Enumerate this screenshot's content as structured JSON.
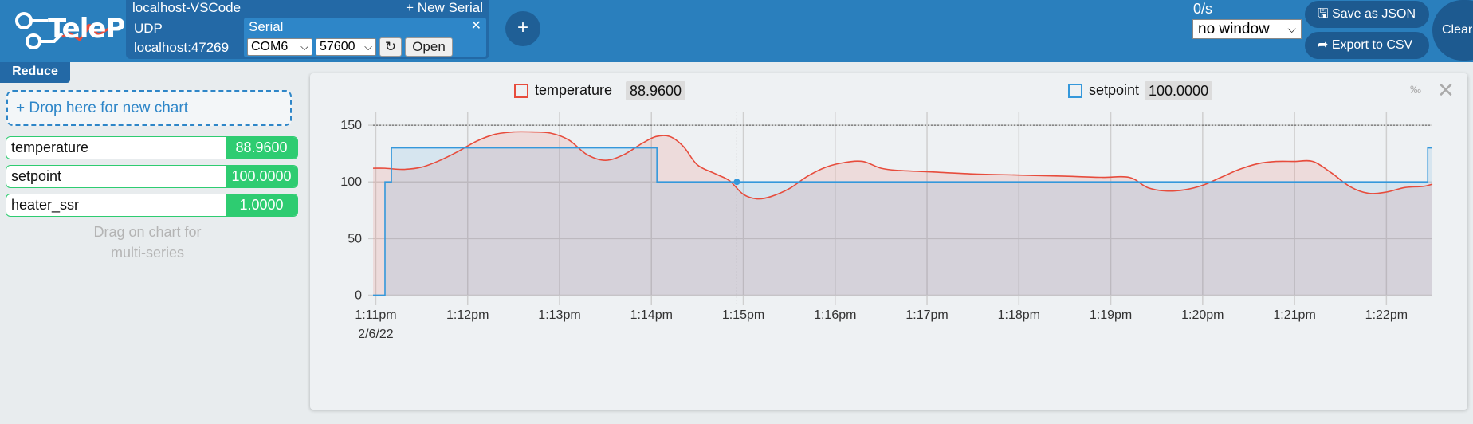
{
  "header": {
    "logo_text": "TelePlot",
    "connection_title": "localhost-VSCode",
    "new_serial_label": "+ New Serial",
    "udp": {
      "label": "UDP",
      "address": "localhost:47269"
    },
    "serial": {
      "label": "Serial",
      "close_glyph": "✕",
      "port": "COM6",
      "baud": "57600",
      "refresh_glyph": "↻",
      "open_label": "Open"
    },
    "add_glyph": "+",
    "rate": "0/s",
    "window_select": "no window",
    "save_json_label": "🖫 Save as JSON",
    "export_csv_label": "➦ Export to CSV",
    "clear_label": "Clear"
  },
  "sidebar": {
    "reduce_label": "Reduce",
    "drop_zone_label": "+ Drop here for new chart",
    "variables": [
      {
        "name": "temperature",
        "value": "88.9600"
      },
      {
        "name": "setpoint",
        "value": "100.0000"
      },
      {
        "name": "heater_ssr",
        "value": "1.0000"
      }
    ],
    "hint_line1": "Drag on chart for",
    "hint_line2": "multi-series"
  },
  "chart": {
    "permille_label": "‰",
    "close_glyph": "✕",
    "legend": [
      {
        "name": "temperature",
        "value": "88.9600",
        "color": "#e74c3c"
      },
      {
        "name": "setpoint",
        "value": "100.0000",
        "color": "#3498db"
      }
    ],
    "date_label": "2/6/22"
  },
  "chart_data": {
    "type": "line",
    "x_unit": "time",
    "x_tick_labels": [
      "1:11pm",
      "1:12pm",
      "1:13pm",
      "1:14pm",
      "1:15pm",
      "1:16pm",
      "1:17pm",
      "1:18pm",
      "1:19pm",
      "1:20pm",
      "1:21pm",
      "1:22pm"
    ],
    "x_ticks_minutes": [
      11,
      12,
      13,
      14,
      15,
      16,
      17,
      18,
      19,
      20,
      21,
      22
    ],
    "xlim_minutes": [
      10.97,
      22.5
    ],
    "y_ticks": [
      0,
      50,
      100,
      150
    ],
    "ylim": [
      -6,
      162
    ],
    "grid": true,
    "legend_position": "top",
    "cursor_x_minutes": 14.93,
    "cursor_point": {
      "x_minutes": 14.93,
      "y": 100
    },
    "series": [
      {
        "name": "temperature",
        "color": "#e74c3c",
        "x_minutes": [
          10.97,
          11.1,
          11.3,
          11.5,
          11.7,
          11.9,
          12.1,
          12.3,
          12.5,
          12.7,
          12.9,
          13.1,
          13.3,
          13.5,
          13.7,
          13.9,
          14.05,
          14.2,
          14.35,
          14.5,
          14.7,
          14.85,
          15.0,
          15.15,
          15.3,
          15.5,
          15.7,
          15.9,
          16.1,
          16.3,
          16.5,
          16.7,
          17.0,
          17.5,
          18.0,
          18.5,
          18.9,
          19.2,
          19.4,
          19.6,
          19.8,
          20.0,
          20.2,
          20.4,
          20.6,
          20.8,
          21.0,
          21.2,
          21.4,
          21.6,
          21.8,
          22.0,
          22.2,
          22.4,
          22.5
        ],
        "values": [
          112,
          112,
          111,
          113,
          119,
          127,
          136,
          142,
          144,
          144,
          143,
          137,
          124,
          119,
          124,
          134,
          140,
          140,
          131,
          115,
          107,
          101,
          89,
          85,
          87,
          94,
          105,
          113,
          117,
          118,
          112,
          110,
          109,
          107,
          106,
          105,
          104,
          104,
          95,
          92,
          93,
          97,
          104,
          111,
          116,
          118,
          118,
          118,
          108,
          96,
          90,
          91,
          95,
          96,
          98
        ]
      },
      {
        "name": "setpoint",
        "color": "#3498db",
        "step": true,
        "x_minutes": [
          10.97,
          11.05,
          11.1,
          11.17,
          14.06,
          14.06,
          22.45,
          22.45,
          22.5
        ],
        "values": [
          0,
          0,
          100,
          130,
          130,
          100,
          100,
          130,
          130
        ]
      }
    ],
    "reference_line": 150
  }
}
